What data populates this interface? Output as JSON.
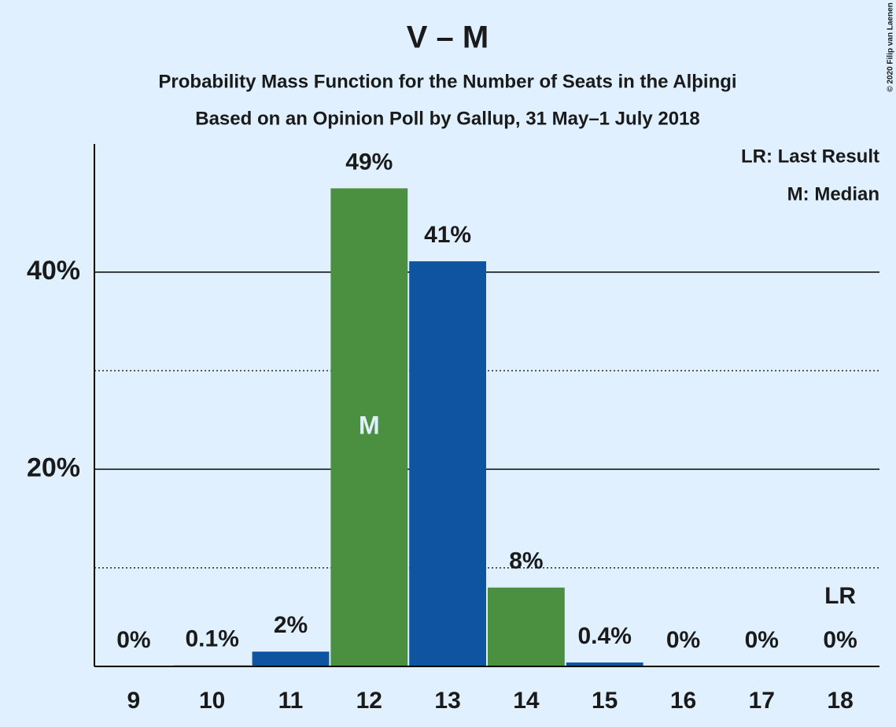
{
  "chart_data": {
    "type": "bar",
    "title": "V – M",
    "subtitle": "Probability Mass Function for the Number of Seats in the Alþingi",
    "subtitle2": "Based on an Opinion Poll by Gallup, 31 May–1 July 2018",
    "copyright": "© 2020 Filip van Laenen",
    "categories": [
      "9",
      "10",
      "11",
      "12",
      "13",
      "14",
      "15",
      "16",
      "17",
      "18"
    ],
    "values": [
      0,
      0.1,
      1.5,
      48.5,
      41.1,
      8.0,
      0.4,
      0,
      0,
      0
    ],
    "value_labels": [
      "0%",
      "0.1%",
      "2%",
      "49%",
      "41%",
      "8%",
      "0.4%",
      "0%",
      "0%",
      "0%"
    ],
    "colors": [
      "#4a9040",
      "#0e54a0",
      "#0e54a0",
      "#4a9040",
      "#0e54a0",
      "#4a9040",
      "#0e54a0",
      "#4a9040",
      "#0e54a0",
      "#4a9040"
    ],
    "ylim": [
      0,
      53
    ],
    "yticks": [
      {
        "value": 20,
        "label": "20%"
      },
      {
        "value": 40,
        "label": "40%"
      }
    ],
    "minor_yticks": [
      10,
      30
    ],
    "median_category_index": 3,
    "median_label": "M",
    "last_result_category_index": 9,
    "last_result_label": "LR",
    "legend": [
      "LR: Last Result",
      "M: Median"
    ]
  }
}
